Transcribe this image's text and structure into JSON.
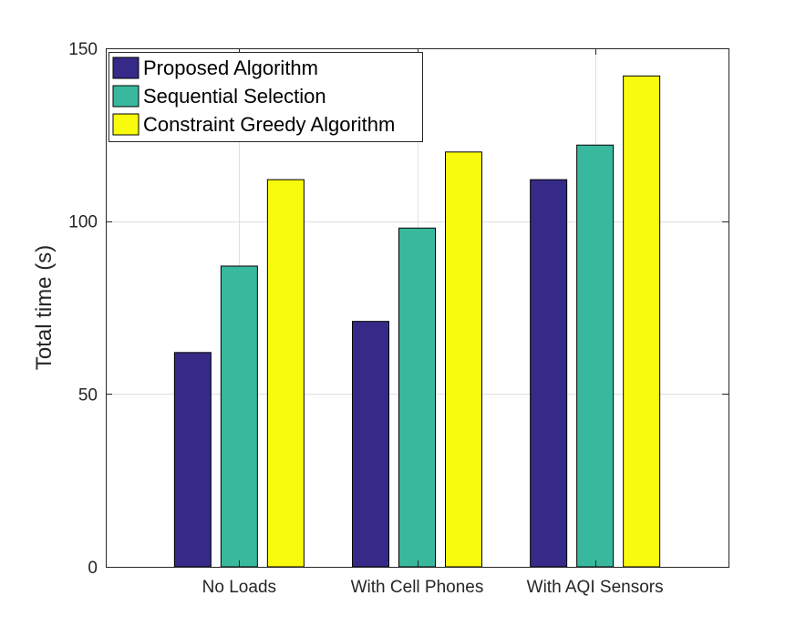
{
  "chart_data": {
    "type": "bar",
    "title": "",
    "xlabel": "",
    "ylabel": "Total time (s)",
    "ylim": [
      0,
      150
    ],
    "yticks": [
      0,
      50,
      100,
      150
    ],
    "grid": true,
    "legend_position": "top-left",
    "categories": [
      "No Loads",
      "With Cell Phones",
      "With AQI Sensors"
    ],
    "series": [
      {
        "name": "Proposed Algorithm",
        "color": "#352A87",
        "values": [
          62,
          71,
          112
        ]
      },
      {
        "name": "Sequential Selection",
        "color": "#38B99E",
        "values": [
          87,
          98,
          122
        ]
      },
      {
        "name": "Constraint Greedy Algorithm",
        "color": "#F9FB0E",
        "values": [
          112,
          120,
          142
        ]
      }
    ]
  }
}
